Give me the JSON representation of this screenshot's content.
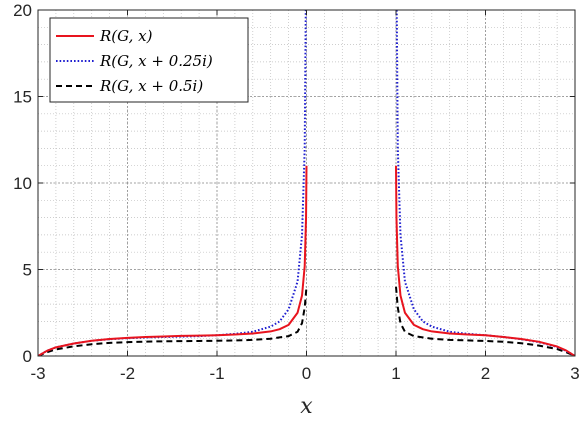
{
  "chart_data": {
    "type": "line",
    "xlabel": "x",
    "ylabel": "",
    "xlim": [
      -3,
      3
    ],
    "ylim": [
      0,
      20
    ],
    "xticks": [
      "-3",
      "-2",
      "-1",
      "0",
      "1",
      "2",
      "3"
    ],
    "yticks": [
      "0",
      "5",
      "10",
      "15",
      "20"
    ],
    "grid": true,
    "minor_grid": true,
    "legend_position": "top-left",
    "series": [
      {
        "name": "R(G, x)",
        "color": "#e8141e",
        "style": "solid",
        "segments": [
          [
            [
              -3,
              0
            ],
            [
              -2.9,
              0.3
            ],
            [
              -2.8,
              0.5
            ],
            [
              -2.6,
              0.72
            ],
            [
              -2.4,
              0.88
            ],
            [
              -2.2,
              0.98
            ],
            [
              -2.0,
              1.05
            ],
            [
              -1.8,
              1.1
            ],
            [
              -1.6,
              1.13
            ],
            [
              -1.4,
              1.16
            ],
            [
              -1.2,
              1.18
            ],
            [
              -1.0,
              1.2
            ],
            [
              -0.8,
              1.24
            ],
            [
              -0.6,
              1.3
            ],
            [
              -0.4,
              1.42
            ],
            [
              -0.3,
              1.55
            ],
            [
              -0.2,
              1.8
            ],
            [
              -0.1,
              2.5
            ],
            [
              -0.05,
              3.5
            ],
            [
              -0.02,
              5.2
            ],
            [
              -0.005,
              8
            ],
            [
              0,
              11
            ]
          ],
          [
            [
              1,
              11
            ],
            [
              1.005,
              8
            ],
            [
              1.02,
              5.2
            ],
            [
              1.05,
              3.5
            ],
            [
              1.1,
              2.5
            ],
            [
              1.2,
              1.8
            ],
            [
              1.3,
              1.55
            ],
            [
              1.4,
              1.42
            ],
            [
              1.6,
              1.3
            ],
            [
              1.8,
              1.24
            ],
            [
              2.0,
              1.2
            ],
            [
              2.2,
              1.1
            ],
            [
              2.4,
              0.98
            ],
            [
              2.6,
              0.82
            ],
            [
              2.8,
              0.55
            ],
            [
              2.9,
              0.32
            ],
            [
              3,
              0
            ]
          ]
        ]
      },
      {
        "name": "R(G, x + 0.25i)",
        "color": "#1f1fd0",
        "style": "dotted",
        "segments": [
          [
            [
              -3,
              0
            ],
            [
              -2.9,
              0.3
            ],
            [
              -2.8,
              0.5
            ],
            [
              -2.6,
              0.72
            ],
            [
              -2.4,
              0.88
            ],
            [
              -2.2,
              0.97
            ],
            [
              -2.0,
              1.03
            ],
            [
              -1.8,
              1.07
            ],
            [
              -1.6,
              1.1
            ],
            [
              -1.4,
              1.12
            ],
            [
              -1.2,
              1.15
            ],
            [
              -1.0,
              1.2
            ],
            [
              -0.8,
              1.28
            ],
            [
              -0.6,
              1.4
            ],
            [
              -0.4,
              1.7
            ],
            [
              -0.3,
              2.0
            ],
            [
              -0.2,
              2.7
            ],
            [
              -0.1,
              4.3
            ],
            [
              -0.05,
              7
            ],
            [
              -0.02,
              12
            ],
            [
              -0.008,
              20
            ]
          ],
          [
            [
              1.008,
              20
            ],
            [
              1.02,
              12
            ],
            [
              1.05,
              7
            ],
            [
              1.1,
              4.3
            ],
            [
              1.2,
              2.7
            ],
            [
              1.3,
              2.0
            ],
            [
              1.4,
              1.7
            ],
            [
              1.6,
              1.4
            ],
            [
              1.8,
              1.28
            ],
            [
              2.0,
              1.2
            ],
            [
              2.2,
              1.1
            ],
            [
              2.4,
              0.97
            ],
            [
              2.6,
              0.8
            ],
            [
              2.8,
              0.52
            ],
            [
              2.9,
              0.3
            ],
            [
              3,
              0
            ]
          ]
        ]
      },
      {
        "name": "R(G, x + 0.5i)",
        "color": "#000000",
        "style": "dashed",
        "segments": [
          [
            [
              -3,
              0
            ],
            [
              -2.9,
              0.22
            ],
            [
              -2.8,
              0.38
            ],
            [
              -2.6,
              0.56
            ],
            [
              -2.4,
              0.68
            ],
            [
              -2.2,
              0.76
            ],
            [
              -2.0,
              0.8
            ],
            [
              -1.8,
              0.83
            ],
            [
              -1.6,
              0.85
            ],
            [
              -1.4,
              0.86
            ],
            [
              -1.2,
              0.87
            ],
            [
              -1.0,
              0.88
            ],
            [
              -0.8,
              0.9
            ],
            [
              -0.6,
              0.93
            ],
            [
              -0.4,
              1.0
            ],
            [
              -0.2,
              1.15
            ],
            [
              -0.1,
              1.4
            ],
            [
              -0.05,
              1.9
            ],
            [
              -0.02,
              2.8
            ],
            [
              0,
              4
            ]
          ],
          [
            [
              1,
              4
            ],
            [
              1.02,
              2.8
            ],
            [
              1.05,
              1.9
            ],
            [
              1.1,
              1.4
            ],
            [
              1.2,
              1.15
            ],
            [
              1.4,
              1.0
            ],
            [
              1.6,
              0.93
            ],
            [
              1.8,
              0.9
            ],
            [
              2.0,
              0.87
            ],
            [
              2.2,
              0.82
            ],
            [
              2.4,
              0.74
            ],
            [
              2.6,
              0.6
            ],
            [
              2.8,
              0.4
            ],
            [
              2.9,
              0.22
            ],
            [
              3,
              0
            ]
          ]
        ]
      }
    ]
  }
}
